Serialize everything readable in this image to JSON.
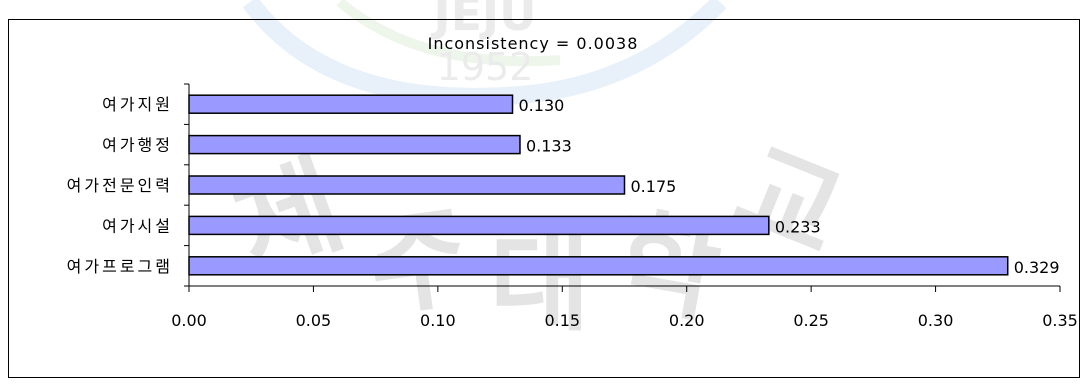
{
  "colors": {
    "bar_fill": "#9999ff",
    "bar_stroke": "#000000",
    "axis": "#000000",
    "text": "#000000"
  },
  "chart_data": {
    "type": "bar",
    "orientation": "horizontal",
    "title": "Inconsistency = 0.0038",
    "categories": [
      "여가지원",
      "여가행정",
      "여가전문인력",
      "여가시설",
      "여가프로그램"
    ],
    "values": [
      0.13,
      0.133,
      0.175,
      0.233,
      0.329
    ],
    "value_labels": [
      "0.130",
      "0.133",
      "0.175",
      "0.233",
      "0.329"
    ],
    "xlim": [
      0,
      0.35
    ],
    "xticks": [
      0.0,
      0.05,
      0.1,
      0.15,
      0.2,
      0.25,
      0.3,
      0.35
    ],
    "xtick_labels": [
      "0.00",
      "0.05",
      "0.10",
      "0.15",
      "0.20",
      "0.25",
      "0.30",
      "0.35"
    ],
    "grid": false,
    "legend": "none",
    "xlabel": "",
    "ylabel": ""
  },
  "watermark": {
    "text_top": "JEJU",
    "text_year": "1952",
    "chars": [
      "제",
      "주",
      "대",
      "학",
      "교"
    ]
  }
}
